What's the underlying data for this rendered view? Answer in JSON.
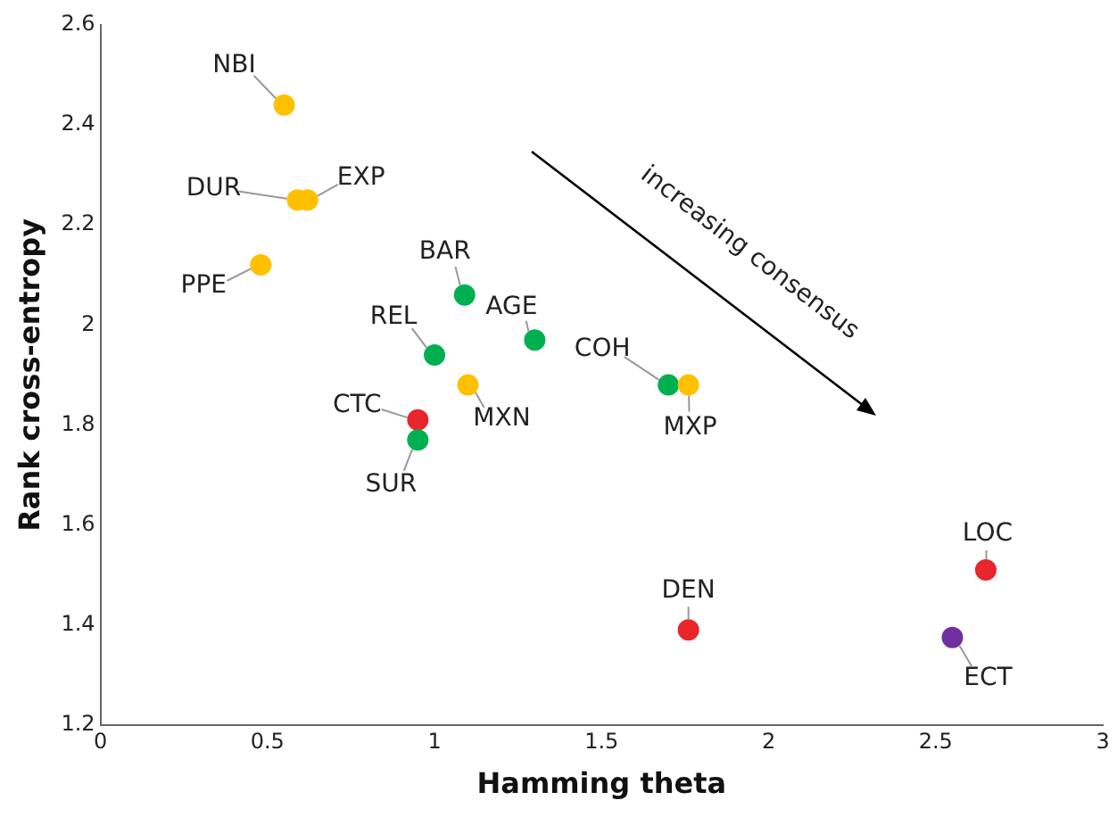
{
  "chart_data": {
    "type": "scatter",
    "xlabel": "Hamming theta",
    "ylabel": "Rank cross-entropy",
    "xlim": [
      0,
      3
    ],
    "xticks": [
      0,
      0.5,
      1,
      1.5,
      2,
      2.5,
      3
    ],
    "ylim": [
      1.2,
      2.6
    ],
    "yticks": [
      1.2,
      1.4,
      1.6,
      1.8,
      2,
      2.2,
      2.4,
      2.6
    ],
    "grid": false,
    "legend": false,
    "marker": "circle",
    "series": [
      {
        "color": "#ffc000",
        "x": [
          0.55,
          0.59,
          0.62,
          0.48,
          1.1,
          1.76
        ],
        "values": [
          2.44,
          2.25,
          2.25,
          2.12,
          1.88,
          1.88
        ]
      },
      {
        "color": "#00b050",
        "x": [
          1.09,
          1.3,
          1.0,
          1.7,
          0.95
        ],
        "values": [
          2.06,
          1.97,
          1.94,
          1.88,
          1.77
        ]
      },
      {
        "color": "#e8262b",
        "x": [
          0.95,
          1.76,
          2.65
        ],
        "values": [
          1.81,
          1.39,
          1.51
        ]
      },
      {
        "color": "#7030a0",
        "x": [
          2.55
        ],
        "values": [
          1.375
        ]
      }
    ],
    "annotations": [
      {
        "text": "NBI",
        "x": 0.55,
        "y": 2.44
      },
      {
        "text": "DUR",
        "x": 0.59,
        "y": 2.25
      },
      {
        "text": "EXP",
        "x": 0.62,
        "y": 2.25
      },
      {
        "text": "PPE",
        "x": 0.48,
        "y": 2.12
      },
      {
        "text": "MXN",
        "x": 1.1,
        "y": 1.88
      },
      {
        "text": "MXP",
        "x": 1.76,
        "y": 1.88
      },
      {
        "text": "BAR",
        "x": 1.09,
        "y": 2.06
      },
      {
        "text": "AGE",
        "x": 1.3,
        "y": 1.97
      },
      {
        "text": "REL",
        "x": 1.0,
        "y": 1.94
      },
      {
        "text": "COH",
        "x": 1.7,
        "y": 1.88
      },
      {
        "text": "SUR",
        "x": 0.95,
        "y": 1.77
      },
      {
        "text": "CTC",
        "x": 0.95,
        "y": 1.81
      },
      {
        "text": "DEN",
        "x": 1.76,
        "y": 1.39
      },
      {
        "text": "LOC",
        "x": 2.65,
        "y": 1.51
      },
      {
        "text": "ECT",
        "x": 2.55,
        "y": 1.375
      },
      "increasing consensus"
    ]
  }
}
